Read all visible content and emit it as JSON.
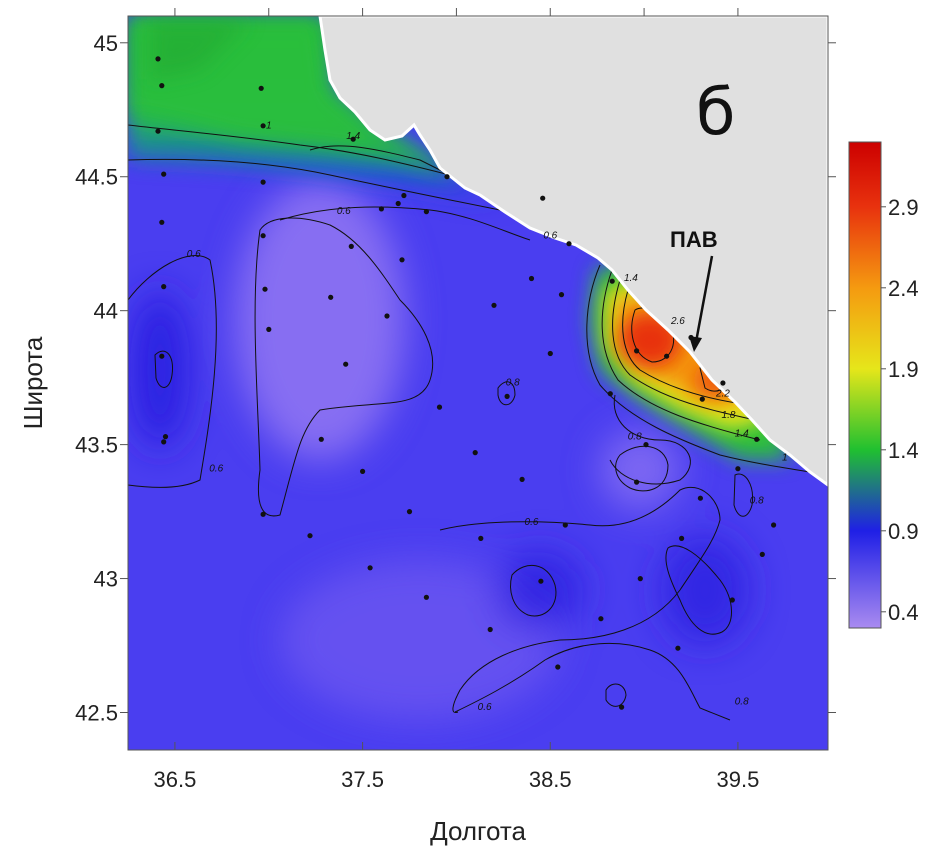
{
  "panel_label": "б",
  "annotation": {
    "text": "ПАВ",
    "at": {
      "lon": 39.28,
      "lat": 43.86
    }
  },
  "axes": {
    "xlabel": "Долгота",
    "ylabel": "Широта",
    "xlim": [
      36.25,
      39.98
    ],
    "ylim": [
      42.36,
      45.1
    ],
    "xticks": [
      36.5,
      37.5,
      38.5,
      39.5
    ],
    "xtick_labels": [
      "36.5",
      "37.5",
      "38.5",
      "39.5"
    ],
    "yticks": [
      42.5,
      43,
      43.5,
      44,
      44.5,
      45
    ],
    "ytick_labels": [
      "42.5",
      "43",
      "43.5",
      "44",
      "44.5",
      "45"
    ],
    "top_minor_ticks": [
      36.5,
      37.0,
      37.5,
      38.0,
      38.5,
      39.0,
      39.5
    ]
  },
  "colorbar": {
    "range": [
      0.3,
      3.3
    ],
    "ticks": [
      0.4,
      0.9,
      1.4,
      1.9,
      2.4,
      2.9
    ],
    "tick_labels": [
      "0.4",
      "0.9",
      "1.4",
      "1.9",
      "2.4",
      "2.9"
    ],
    "stops": [
      {
        "value": 0.3,
        "color": "#a98bf0"
      },
      {
        "value": 0.9,
        "color": "#1f1fe6"
      },
      {
        "value": 1.4,
        "color": "#20c030"
      },
      {
        "value": 1.9,
        "color": "#e6e61a"
      },
      {
        "value": 2.4,
        "color": "#f59a10"
      },
      {
        "value": 2.9,
        "color": "#e8320e"
      },
      {
        "value": 3.3,
        "color": "#cc0000"
      }
    ]
  },
  "land_color": "#e0e0e0",
  "sea_base_color": "#4a3ef0",
  "contour_labels": [
    {
      "text": "1.4",
      "lon": 37.45,
      "lat": 44.64
    },
    {
      "text": "1",
      "lon": 37.0,
      "lat": 44.68
    },
    {
      "text": "0.6",
      "lon": 37.4,
      "lat": 44.36
    },
    {
      "text": "0.6",
      "lon": 38.5,
      "lat": 44.27
    },
    {
      "text": "0.6",
      "lon": 36.6,
      "lat": 44.2
    },
    {
      "text": "0.8",
      "lon": 38.3,
      "lat": 43.72
    },
    {
      "text": "1.4",
      "lon": 38.93,
      "lat": 44.11
    },
    {
      "text": "2.6",
      "lon": 39.18,
      "lat": 43.95
    },
    {
      "text": "2.2",
      "lon": 39.42,
      "lat": 43.68
    },
    {
      "text": "1.8",
      "lon": 39.45,
      "lat": 43.6
    },
    {
      "text": "1.4",
      "lon": 39.52,
      "lat": 43.53
    },
    {
      "text": "1",
      "lon": 39.75,
      "lat": 43.44
    },
    {
      "text": "0.8",
      "lon": 38.95,
      "lat": 43.52
    },
    {
      "text": "0.6",
      "lon": 36.72,
      "lat": 43.4
    },
    {
      "text": "0.6",
      "lon": 38.4,
      "lat": 43.2
    },
    {
      "text": "0.8",
      "lon": 39.6,
      "lat": 43.28
    },
    {
      "text": "0.6",
      "lon": 38.15,
      "lat": 42.51
    },
    {
      "text": "0.8",
      "lon": 39.52,
      "lat": 42.53
    }
  ],
  "stations": [
    [
      36.41,
      44.94
    ],
    [
      36.43,
      44.84
    ],
    [
      36.41,
      44.67
    ],
    [
      36.44,
      44.51
    ],
    [
      36.43,
      44.33
    ],
    [
      36.44,
      44.09
    ],
    [
      36.43,
      43.83
    ],
    [
      36.44,
      43.51
    ],
    [
      36.45,
      43.53
    ],
    [
      36.96,
      44.83
    ],
    [
      36.97,
      44.69
    ],
    [
      36.97,
      44.48
    ],
    [
      36.97,
      44.28
    ],
    [
      36.98,
      44.08
    ],
    [
      37.0,
      43.93
    ],
    [
      36.97,
      43.24
    ],
    [
      37.22,
      43.16
    ],
    [
      37.28,
      43.52
    ],
    [
      37.33,
      44.05
    ],
    [
      37.44,
      44.24
    ],
    [
      37.41,
      43.8
    ],
    [
      37.5,
      43.4
    ],
    [
      37.54,
      43.04
    ],
    [
      37.6,
      44.38
    ],
    [
      37.69,
      44.4
    ],
    [
      37.84,
      44.37
    ],
    [
      37.71,
      44.19
    ],
    [
      37.75,
      43.25
    ],
    [
      37.84,
      42.93
    ],
    [
      37.91,
      43.64
    ],
    [
      37.63,
      43.98
    ],
    [
      37.45,
      44.64
    ],
    [
      37.72,
      44.43
    ],
    [
      37.95,
      44.5
    ],
    [
      38.1,
      43.47
    ],
    [
      38.13,
      43.15
    ],
    [
      38.18,
      42.81
    ],
    [
      38.27,
      43.68
    ],
    [
      38.35,
      43.37
    ],
    [
      38.45,
      42.99
    ],
    [
      38.54,
      42.67
    ],
    [
      38.58,
      43.2
    ],
    [
      38.56,
      44.06
    ],
    [
      38.5,
      43.84
    ],
    [
      38.77,
      42.85
    ],
    [
      38.82,
      43.69
    ],
    [
      38.83,
      44.11
    ],
    [
      38.96,
      43.85
    ],
    [
      38.96,
      43.36
    ],
    [
      38.98,
      43
    ],
    [
      39.01,
      43.5
    ],
    [
      38.88,
      42.52
    ],
    [
      39.12,
      43.83
    ],
    [
      39.18,
      42.74
    ],
    [
      39.2,
      43.15
    ],
    [
      39.25,
      43.9
    ],
    [
      39.31,
      43.67
    ],
    [
      39.3,
      43.3
    ],
    [
      39.42,
      43.73
    ],
    [
      39.47,
      42.92
    ],
    [
      39.5,
      43.41
    ],
    [
      39.6,
      43.52
    ],
    [
      39.63,
      43.09
    ],
    [
      39.69,
      43.2
    ],
    [
      38.6,
      44.25
    ],
    [
      38.4,
      44.12
    ],
    [
      38.2,
      44.02
    ],
    [
      38.46,
      44.42
    ]
  ]
}
